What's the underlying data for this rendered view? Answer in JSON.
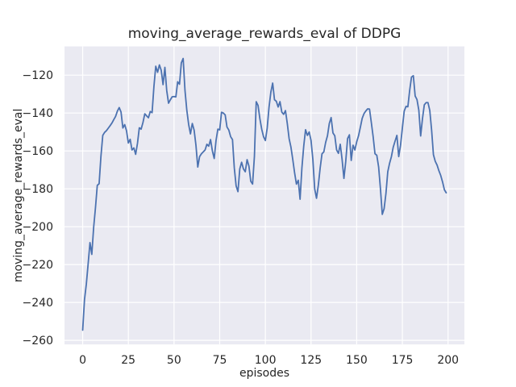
{
  "chart_data": {
    "type": "line",
    "title": "moving_average_rewards_eval of DDPG",
    "xlabel": "episodes",
    "ylabel": "moving_average_rewards_eval",
    "xticks": [
      0,
      25,
      50,
      75,
      100,
      125,
      150,
      175,
      200
    ],
    "yticks": [
      -260,
      -240,
      -220,
      -200,
      -180,
      -160,
      -140,
      -120
    ],
    "xlim": [
      -9.95,
      208.95
    ],
    "ylim": [
      -262.15,
      -104.85
    ],
    "grid": true,
    "legend_position": "none",
    "colors": {
      "figure_background": "#ffffff",
      "axes_background": "#eaeaf2",
      "grid": "#ffffff",
      "text": "#262626",
      "line": "#4c72b0"
    },
    "series": [
      {
        "name": "moving_average_rewards_eval",
        "color": "#4c72b0",
        "x_start": 0,
        "x_step": 1,
        "values": [
          -254.6,
          -238.5,
          -230.3,
          -219.5,
          -208.4,
          -214.6,
          -200.5,
          -190,
          -178.2,
          -177.3,
          -162.8,
          -151.8,
          -150.2,
          -149.3,
          -148,
          -146.7,
          -145.3,
          -143.5,
          -141.8,
          -139,
          -137.1,
          -139.5,
          -147.9,
          -146.1,
          -149.4,
          -155.8,
          -153.9,
          -159.5,
          -158.4,
          -161.8,
          -156,
          -147.8,
          -148.5,
          -145,
          -140.4,
          -141.5,
          -142.5,
          -139.2,
          -139.8,
          -126,
          -115.3,
          -118.5,
          -114.6,
          -117.5,
          -125,
          -115.9,
          -128.1,
          -134.8,
          -133,
          -131.4,
          -131.3,
          -131.5,
          -123.5,
          -124.8,
          -113.5,
          -111.2,
          -128,
          -138.5,
          -146,
          -151,
          -145.5,
          -149,
          -157,
          -168.5,
          -163,
          -161.5,
          -160.5,
          -159.5,
          -156.5,
          -157.5,
          -154,
          -160,
          -164,
          -154.5,
          -148.5,
          -148.9,
          -139.6,
          -140,
          -141,
          -147.4,
          -149,
          -152.5,
          -154,
          -169,
          -178.5,
          -181.5,
          -169.5,
          -166,
          -169.5,
          -171,
          -164.6,
          -168,
          -176,
          -177.5,
          -163,
          -134,
          -136,
          -143,
          -148.5,
          -152.5,
          -154.5,
          -148,
          -137,
          -129,
          -124.2,
          -133,
          -133.8,
          -136.8,
          -134,
          -139.5,
          -140.7,
          -138.7,
          -145.5,
          -153.5,
          -158,
          -164.5,
          -171.5,
          -177.5,
          -175.5,
          -185.5,
          -169,
          -157.5,
          -148.8,
          -151.8,
          -150,
          -154.5,
          -164.5,
          -180,
          -185,
          -178,
          -169,
          -161.5,
          -160.5,
          -155.5,
          -152,
          -145.5,
          -142.4,
          -150.5,
          -152,
          -159.5,
          -161.3,
          -156.5,
          -164.5,
          -174.5,
          -165.5,
          -153.5,
          -151.5,
          -165,
          -157,
          -159.5,
          -155.2,
          -152,
          -147.5,
          -142.8,
          -140.3,
          -138.9,
          -137.8,
          -137.9,
          -145,
          -152.5,
          -161.5,
          -162.3,
          -168.5,
          -180,
          -193.5,
          -190.5,
          -182.5,
          -171,
          -166.5,
          -163,
          -158,
          -154.8,
          -151.8,
          -163,
          -157,
          -147.9,
          -139,
          -136.5,
          -136.7,
          -128,
          -121,
          -120.3,
          -131,
          -132.9,
          -138.5,
          -152.1,
          -143,
          -135.7,
          -134.5,
          -134.5,
          -138.6,
          -149,
          -162,
          -165.5,
          -167.5,
          -170.5,
          -173,
          -176.4,
          -180.5,
          -182.1
        ]
      }
    ]
  }
}
